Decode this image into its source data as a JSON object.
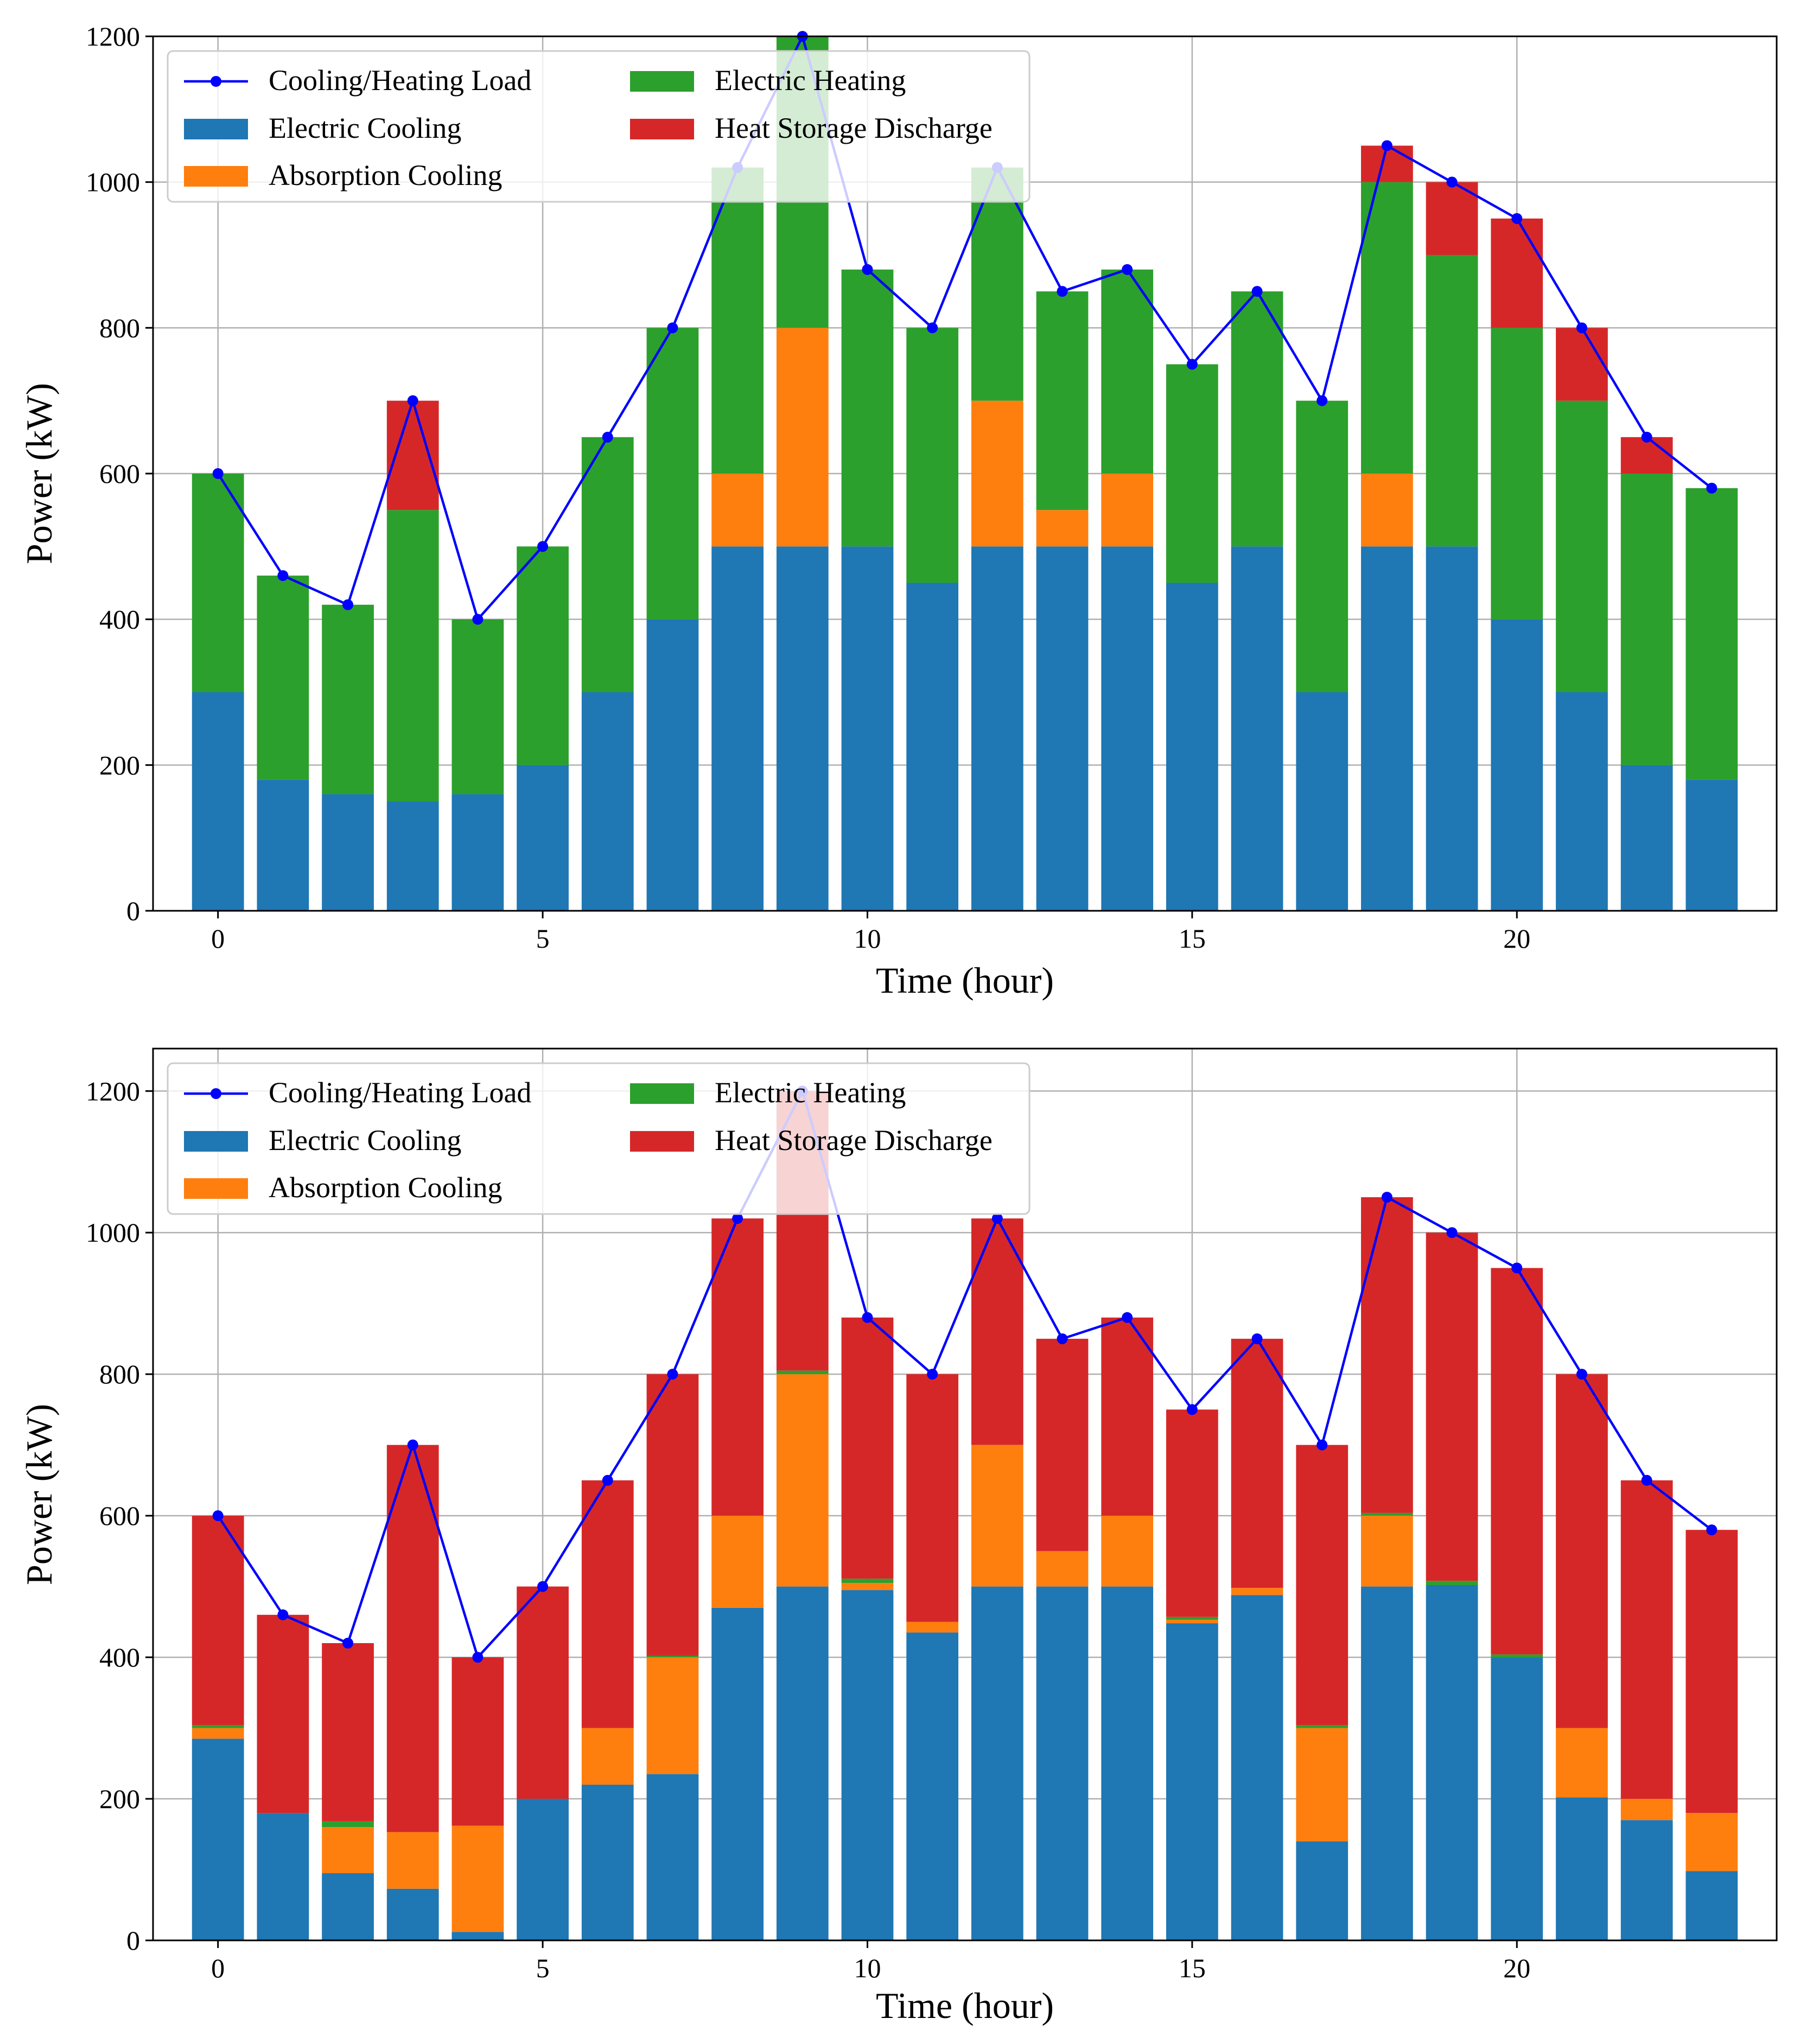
{
  "legend_labels": {
    "load": "Cooling/Heating Load",
    "ec": "Electric Cooling",
    "ac": "Absorption Cooling",
    "eh": "Electric Heating",
    "hs": "Heat Storage Discharge"
  },
  "colors": {
    "load": "#0000ff",
    "ec": "#1f77b4",
    "ac": "#ff7f0e",
    "eh": "#2ca02c",
    "hs": "#d62728"
  },
  "chart_data": [
    {
      "type": "bar",
      "stacked": true,
      "title": "",
      "xlabel": "Time (hour)",
      "ylabel": "Power (kW)",
      "xlim": [
        -1,
        24
      ],
      "ylim": [
        0,
        1200
      ],
      "xticks": [
        0,
        5,
        10,
        15,
        20
      ],
      "yticks": [
        0,
        200,
        400,
        600,
        800,
        1000,
        1200
      ],
      "grid": true,
      "legend_position": "upper-left",
      "x": [
        0,
        1,
        2,
        3,
        4,
        5,
        6,
        7,
        8,
        9,
        10,
        11,
        12,
        13,
        14,
        15,
        16,
        17,
        18,
        19,
        20,
        21,
        22,
        23
      ],
      "series": [
        {
          "key": "ec",
          "name": "Electric Cooling",
          "values": [
            300,
            180,
            160,
            150,
            160,
            200,
            300,
            400,
            500,
            500,
            500,
            450,
            500,
            500,
            500,
            450,
            500,
            300,
            500,
            500,
            400,
            300,
            200,
            180
          ]
        },
        {
          "key": "ac",
          "name": "Absorption Cooling",
          "values": [
            0,
            0,
            0,
            0,
            0,
            0,
            0,
            0,
            100,
            300,
            0,
            0,
            200,
            50,
            100,
            0,
            0,
            0,
            100,
            0,
            0,
            0,
            0,
            0
          ]
        },
        {
          "key": "eh",
          "name": "Electric Heating",
          "values": [
            300,
            280,
            260,
            400,
            240,
            300,
            350,
            400,
            420,
            400,
            380,
            350,
            320,
            300,
            280,
            300,
            350,
            400,
            400,
            400,
            400,
            400,
            400,
            400
          ]
        },
        {
          "key": "hs",
          "name": "Heat Storage Discharge",
          "values": [
            0,
            0,
            0,
            150,
            0,
            0,
            0,
            0,
            0,
            0,
            0,
            0,
            0,
            0,
            0,
            0,
            0,
            0,
            50,
            100,
            150,
            100,
            50,
            0
          ]
        }
      ],
      "line": {
        "key": "load",
        "name": "Cooling/Heating Load",
        "values": [
          600,
          460,
          420,
          700,
          400,
          500,
          650,
          800,
          1020,
          1200,
          880,
          800,
          1020,
          850,
          880,
          750,
          850,
          700,
          1050,
          1000,
          950,
          800,
          650,
          580
        ]
      }
    },
    {
      "type": "bar",
      "stacked": true,
      "title": "",
      "xlabel": "Time (hour)",
      "ylabel": "Power (kW)",
      "xlim": [
        -1,
        24
      ],
      "ylim": [
        0,
        1260
      ],
      "xticks": [
        0,
        5,
        10,
        15,
        20
      ],
      "yticks": [
        0,
        200,
        400,
        600,
        800,
        1000,
        1200
      ],
      "grid": true,
      "legend_position": "upper-left",
      "x": [
        0,
        1,
        2,
        3,
        4,
        5,
        6,
        7,
        8,
        9,
        10,
        11,
        12,
        13,
        14,
        15,
        16,
        17,
        18,
        19,
        20,
        21,
        22,
        23
      ],
      "series": [
        {
          "key": "ec",
          "name": "Electric Cooling",
          "values": [
            285,
            180,
            95,
            73,
            12,
            200,
            220,
            235,
            470,
            500,
            495,
            435,
            500,
            500,
            500,
            448,
            488,
            140,
            500,
            502,
            400,
            202,
            170,
            98
          ]
        },
        {
          "key": "ac",
          "name": "Absorption Cooling",
          "values": [
            15,
            0,
            65,
            80,
            150,
            0,
            80,
            165,
            130,
            300,
            10,
            15,
            200,
            50,
            100,
            5,
            10,
            160,
            100,
            0,
            0,
            98,
            30,
            82
          ]
        },
        {
          "key": "eh",
          "name": "Electric Heating",
          "values": [
            4,
            0,
            8,
            0,
            0,
            0,
            0,
            2,
            0,
            5,
            6,
            0,
            0,
            0,
            0,
            4,
            0,
            4,
            4,
            6,
            4,
            0,
            0,
            0
          ]
        },
        {
          "key": "hs",
          "name": "Heat Storage Discharge",
          "values": [
            296,
            280,
            252,
            547,
            238,
            300,
            350,
            398,
            420,
            395,
            369,
            350,
            320,
            300,
            280,
            293,
            352,
            396,
            446,
            492,
            546,
            500,
            450,
            400
          ]
        }
      ],
      "line": {
        "key": "load",
        "name": "Cooling/Heating Load",
        "values": [
          600,
          460,
          420,
          700,
          400,
          500,
          650,
          800,
          1020,
          1200,
          880,
          800,
          1020,
          850,
          880,
          750,
          850,
          700,
          1050,
          1000,
          950,
          800,
          650,
          580
        ]
      }
    }
  ]
}
